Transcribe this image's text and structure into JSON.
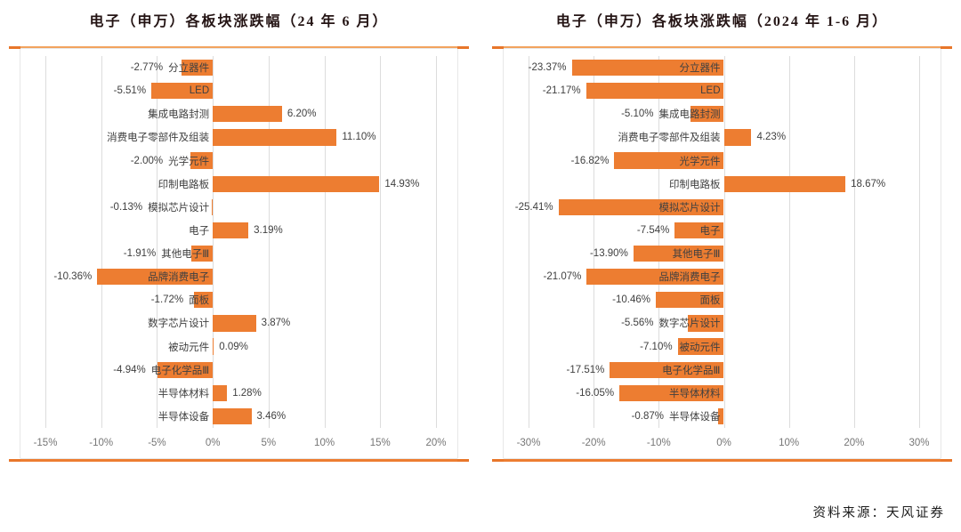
{
  "figure": {
    "source_note": "资料来源：天风证券"
  },
  "chart_data": [
    {
      "type": "bar",
      "orientation": "horizontal",
      "title": "电子（申万）各板块涨跌幅（24 年 6 月）",
      "bar_color": "#ED7D31",
      "grid": true,
      "legend": "none",
      "xlim": [
        -15,
        20
      ],
      "ticks": [
        -15,
        -10,
        -5,
        0,
        5,
        10,
        15,
        20
      ],
      "tick_labels": [
        "-15%",
        "-10%",
        "-5%",
        "0%",
        "5%",
        "10%",
        "15%",
        "20%"
      ],
      "categories": [
        "分立器件",
        "LED",
        "集成电路封测",
        "消费电子零部件及组装",
        "光学元件",
        "印制电路板",
        "模拟芯片设计",
        "电子",
        "其他电子Ⅲ",
        "品牌消费电子",
        "面板",
        "数字芯片设计",
        "被动元件",
        "电子化学品Ⅲ",
        "半导体材料",
        "半导体设备"
      ],
      "values": [
        -2.77,
        -5.51,
        6.2,
        11.1,
        -2.0,
        14.93,
        -0.13,
        3.19,
        -1.91,
        -10.36,
        -1.72,
        3.87,
        0.09,
        -4.94,
        1.28,
        3.46
      ],
      "value_labels": [
        "-2.77%",
        "-5.51%",
        "6.20%",
        "11.10%",
        "-2.00%",
        "14.93%",
        "-0.13%",
        "3.19%",
        "-1.91%",
        "-10.36%",
        "-1.72%",
        "3.87%",
        "0.09%",
        "-4.94%",
        "1.28%",
        "3.46%"
      ]
    },
    {
      "type": "bar",
      "orientation": "horizontal",
      "title": "电子（申万）各板块涨跌幅（2024 年 1-6 月）",
      "bar_color": "#ED7D31",
      "grid": true,
      "legend": "none",
      "xlim": [
        -30,
        30
      ],
      "ticks": [
        -30,
        -20,
        -10,
        0,
        10,
        20,
        30
      ],
      "tick_labels": [
        "-30%",
        "-20%",
        "-10%",
        "0%",
        "10%",
        "20%",
        "30%"
      ],
      "categories": [
        "分立器件",
        "LED",
        "集成电路封测",
        "消费电子零部件及组装",
        "光学元件",
        "印制电路板",
        "模拟芯片设计",
        "电子",
        "其他电子Ⅲ",
        "品牌消费电子",
        "面板",
        "数字芯片设计",
        "被动元件",
        "电子化学品Ⅲ",
        "半导体材料",
        "半导体设备"
      ],
      "values": [
        -23.37,
        -21.17,
        -5.1,
        4.23,
        -16.82,
        18.67,
        -25.41,
        -7.54,
        -13.9,
        -21.07,
        -10.46,
        -5.56,
        -7.1,
        -17.51,
        -16.05,
        -0.87
      ],
      "value_labels": [
        "-23.37%",
        "-21.17%",
        "-5.10%",
        "4.23%",
        "-16.82%",
        "18.67%",
        "-25.41%",
        "-7.54%",
        "-13.90%",
        "-21.07%",
        "-10.46%",
        "-5.56%",
        "-7.10%",
        "-17.51%",
        "-16.05%",
        "-0.87%"
      ]
    }
  ]
}
